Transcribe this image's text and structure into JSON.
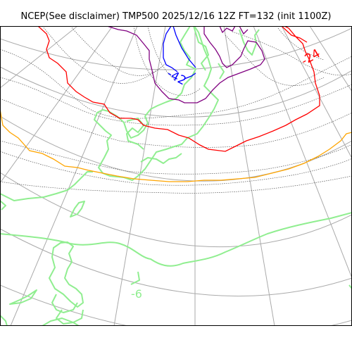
{
  "title": "NCEP(See disclaimer) TMP500 2025/12/16 12Z FT=132 (init 1100Z)",
  "contour_labels": [
    {
      "text": "-42",
      "color": "#0000ff"
    },
    {
      "text": "-24",
      "color": "#ff0000"
    },
    {
      "text": "-6",
      "color": "#90ee90"
    }
  ],
  "colors": {
    "isotherm_blue": "#0000ff",
    "isotherm_purple": "#800080",
    "isotherm_red": "#ff0000",
    "isotherm_orange": "#ffa500",
    "isotherm_green": "#90ee90",
    "coastline": "#90ee90",
    "graticule": "#aaaaaa",
    "minor_isotherm": "#555555"
  }
}
